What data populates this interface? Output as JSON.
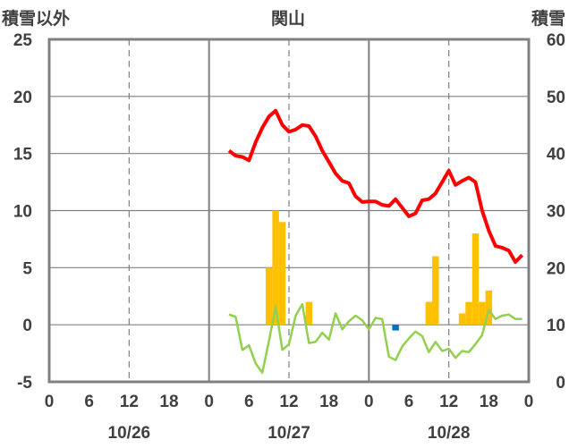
{
  "chart_data": {
    "type": "bar+line",
    "title": "関山",
    "left_axis_label": "積雪以外",
    "right_axis_label": "積雪",
    "left_axis": {
      "ylim": [
        -5,
        25
      ],
      "ticks": [
        "-5",
        "0",
        "5",
        "10",
        "15",
        "20",
        "25"
      ]
    },
    "right_axis": {
      "ylim": [
        0,
        60
      ],
      "ticks": [
        "0",
        "10",
        "20",
        "30",
        "40",
        "50",
        "60"
      ]
    },
    "x_axis": {
      "range_hours": [
        0,
        72
      ],
      "hour_ticks": [
        "0",
        "6",
        "12",
        "18",
        "0",
        "6",
        "12",
        "18",
        "0",
        "6",
        "12",
        "18",
        "0"
      ],
      "dates": [
        "10/26",
        "10/27",
        "10/28"
      ]
    },
    "grid": {
      "vertical_dashed_every_hours": 12
    },
    "colors": {
      "snow_depth": "#ff0000",
      "precipitation": "#ffc000",
      "temperature": "#92d050",
      "snowfall_blue": "#0070c0",
      "bottom_line": "#7030a0",
      "frame": "#808080"
    },
    "series": [
      {
        "type": "line",
        "axis": "right",
        "color_key": "snow_depth",
        "points": [
          [
            27,
            40.5
          ],
          [
            28,
            39.6
          ],
          [
            29,
            39.4
          ],
          [
            30,
            38.8
          ],
          [
            31,
            42
          ],
          [
            32,
            44.5
          ],
          [
            33,
            46.5
          ],
          [
            34,
            47.5
          ],
          [
            35,
            45
          ],
          [
            36,
            43.8
          ],
          [
            37,
            44.2
          ],
          [
            38,
            45
          ],
          [
            39,
            44.8
          ],
          [
            40,
            43
          ],
          [
            41,
            40.5
          ],
          [
            42,
            38.5
          ],
          [
            43,
            36.5
          ],
          [
            44,
            35.2
          ],
          [
            45,
            34.8
          ],
          [
            46,
            32.5
          ],
          [
            47,
            31.5
          ],
          [
            48,
            31.6
          ],
          [
            49,
            31.6
          ],
          [
            50,
            31
          ],
          [
            51,
            30.8
          ],
          [
            52,
            32
          ],
          [
            53,
            30.5
          ],
          [
            54,
            29
          ],
          [
            55,
            29.5
          ],
          [
            56,
            31.8
          ],
          [
            57,
            32
          ],
          [
            58,
            33
          ],
          [
            59,
            35
          ],
          [
            60,
            37
          ],
          [
            61,
            34.5
          ],
          [
            62,
            35.2
          ],
          [
            63,
            35.8
          ],
          [
            64,
            35
          ],
          [
            65,
            30
          ],
          [
            66,
            26.5
          ],
          [
            67,
            23.8
          ],
          [
            68,
            23.5
          ],
          [
            69,
            23
          ],
          [
            70,
            21
          ],
          [
            71,
            22.2
          ]
        ]
      },
      {
        "type": "line",
        "axis": "left",
        "color_key": "temperature",
        "points": [
          [
            27,
            0.9
          ],
          [
            28,
            0.7
          ],
          [
            29,
            -2.2
          ],
          [
            30,
            -1.8
          ],
          [
            31,
            -3.4
          ],
          [
            32,
            -4.2
          ],
          [
            33,
            -1.4
          ],
          [
            34,
            1.6
          ],
          [
            35,
            -2.2
          ],
          [
            36,
            -1.7
          ],
          [
            37,
            0.8
          ],
          [
            38,
            1.8
          ],
          [
            39,
            -1.6
          ],
          [
            40,
            -1.5
          ],
          [
            41,
            -0.7
          ],
          [
            42,
            -1.3
          ],
          [
            43,
            1
          ],
          [
            44,
            -0.4
          ],
          [
            45,
            0.3
          ],
          [
            46,
            0.8
          ],
          [
            47,
            0.4
          ],
          [
            48,
            -0.4
          ],
          [
            49,
            0.6
          ],
          [
            50,
            0.5
          ],
          [
            51,
            -2.8
          ],
          [
            52,
            -3.1
          ],
          [
            53,
            -1.9
          ],
          [
            54,
            -1.2
          ],
          [
            55,
            -0.6
          ],
          [
            56,
            -1
          ],
          [
            57,
            -2.4
          ],
          [
            58,
            -1.5
          ],
          [
            59,
            -2.3
          ],
          [
            60,
            -2.1
          ],
          [
            61,
            -2.9
          ],
          [
            62,
            -2.3
          ],
          [
            63,
            -2.4
          ],
          [
            64,
            -1.7
          ],
          [
            65,
            -0.9
          ],
          [
            66,
            1.3
          ],
          [
            67,
            0.5
          ],
          [
            68,
            0.8
          ],
          [
            69,
            0.9
          ],
          [
            70,
            0.5
          ],
          [
            71,
            0.5
          ]
        ]
      },
      {
        "type": "bar",
        "axis": "left",
        "color_key": "precipitation",
        "bars": [
          [
            33,
            5
          ],
          [
            34,
            10
          ],
          [
            35,
            9
          ],
          [
            39,
            2
          ],
          [
            57,
            2
          ],
          [
            58,
            6
          ],
          [
            62,
            1
          ],
          [
            63,
            2
          ],
          [
            64,
            8
          ],
          [
            65,
            2
          ],
          [
            66,
            3
          ]
        ]
      },
      {
        "type": "bar",
        "axis": "left",
        "color_key": "snowfall_blue",
        "bars": [
          [
            52,
            -0.5
          ]
        ]
      },
      {
        "type": "line",
        "axis": "right",
        "color_key": "bottom_line",
        "points": [
          [
            27,
            0
          ],
          [
            71,
            0
          ]
        ]
      }
    ]
  }
}
